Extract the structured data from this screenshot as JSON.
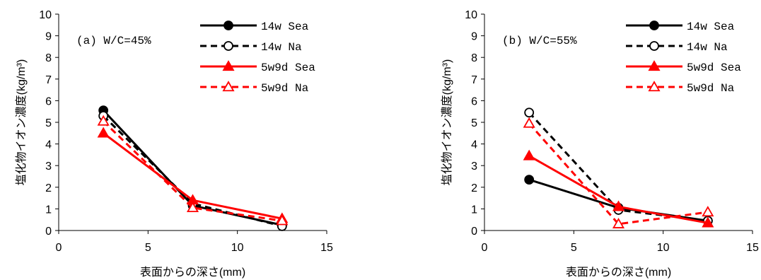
{
  "chart_data": [
    {
      "type": "line",
      "panel_label": "(a)  W/C=45%",
      "xlabel": "表面からの深さ(mm)",
      "ylabel": "塩化物イオン濃度(kg/m³)",
      "xlim": [
        0,
        15
      ],
      "ylim": [
        0,
        10
      ],
      "xticks": [
        "0",
        "5",
        "10",
        "15"
      ],
      "yticks": [
        "0",
        "1",
        "2",
        "3",
        "4",
        "5",
        "6",
        "7",
        "8",
        "9",
        "10"
      ],
      "grid": false,
      "legend_position": "top-right",
      "series": [
        {
          "name": "14w Sea",
          "x": [
            2.5,
            7.5,
            12.5
          ],
          "y": [
            5.55,
            1.15,
            0.25
          ],
          "color": "#000000",
          "dash": "solid",
          "marker": "circle-filled"
        },
        {
          "name": "14w Na",
          "x": [
            2.5,
            7.5,
            12.5
          ],
          "y": [
            5.3,
            1.25,
            0.2
          ],
          "color": "#000000",
          "dash": "dashed",
          "marker": "circle-open"
        },
        {
          "name": "5w9d Sea",
          "x": [
            2.5,
            7.5,
            12.5
          ],
          "y": [
            4.5,
            1.4,
            0.55
          ],
          "color": "#ff0000",
          "dash": "solid",
          "marker": "triangle-filled"
        },
        {
          "name": "5w9d Na",
          "x": [
            2.5,
            7.5,
            12.5
          ],
          "y": [
            5.05,
            1.05,
            0.45
          ],
          "color": "#ff0000",
          "dash": "dashed",
          "marker": "triangle-open"
        }
      ]
    },
    {
      "type": "line",
      "panel_label": "(b)  W/C=55%",
      "xlabel": "表面からの深さ(mm)",
      "ylabel": "塩化物イオン濃度(kg/m³)",
      "xlim": [
        0,
        15
      ],
      "ylim": [
        0,
        10
      ],
      "xticks": [
        "0",
        "5",
        "10",
        "15"
      ],
      "yticks": [
        "0",
        "1",
        "2",
        "3",
        "4",
        "5",
        "6",
        "7",
        "8",
        "9",
        "10"
      ],
      "grid": false,
      "legend_position": "top-right",
      "series": [
        {
          "name": "14w Sea",
          "x": [
            2.5,
            7.5,
            12.5
          ],
          "y": [
            2.35,
            1.05,
            0.45
          ],
          "color": "#000000",
          "dash": "solid",
          "marker": "circle-filled"
        },
        {
          "name": "14w Na",
          "x": [
            2.5,
            7.5,
            12.5
          ],
          "y": [
            5.45,
            0.95,
            0.45
          ],
          "color": "#000000",
          "dash": "dashed",
          "marker": "circle-open"
        },
        {
          "name": "5w9d Sea",
          "x": [
            2.5,
            7.5,
            12.5
          ],
          "y": [
            3.45,
            1.1,
            0.35
          ],
          "color": "#ff0000",
          "dash": "solid",
          "marker": "triangle-filled"
        },
        {
          "name": "5w9d Na",
          "x": [
            2.5,
            7.5,
            12.5
          ],
          "y": [
            4.95,
            0.3,
            0.85
          ],
          "color": "#ff0000",
          "dash": "dashed",
          "marker": "triangle-open"
        }
      ]
    }
  ]
}
